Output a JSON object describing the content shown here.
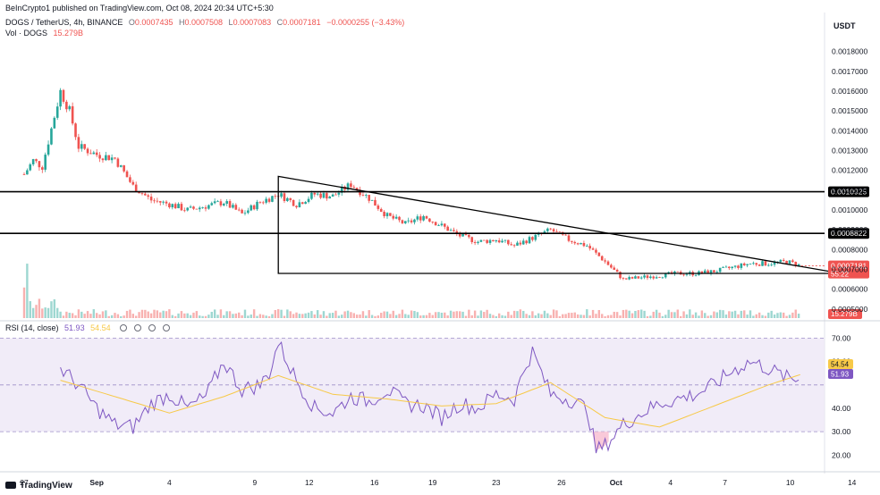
{
  "publisher_line": "BeInCrypto1 published on TradingView.com, Oct 08, 2024 20:34 UTC+5:30",
  "symbol": {
    "title": "DOGS / TetherUS, 4h, BINANCE",
    "o_label": "O",
    "o": "0.0007435",
    "h_label": "H",
    "h": "0.0007508",
    "l_label": "L",
    "l": "0.0007083",
    "c_label": "C",
    "c": "0.0007181",
    "change": "−0.0000255 (−3.43%)"
  },
  "volume": {
    "label": "Vol · DOGS",
    "value": "15.279B"
  },
  "rsi_header": {
    "label": "RSI (14, close)",
    "rsi": "51.93",
    "ma": "54.54"
  },
  "currency_unit": "USDT",
  "branding": "TradingView",
  "colors": {
    "up": "#26a69a",
    "down": "#ef5350",
    "rsi_line": "#7e57c2",
    "rsi_ma": "#f7c948",
    "band": "#ede7f6"
  },
  "chart_data": [
    {
      "type": "candlestick",
      "title": "DOGS / TetherUS, 4h, BINANCE",
      "y_axis_ticks": [
        "0.0018000",
        "0.0017000",
        "0.0016000",
        "0.0015000",
        "0.0014000",
        "0.0013000",
        "0.0012000",
        "0.0011000",
        "0.0010000",
        "0.0009000",
        "0.0008000",
        "0.0007000",
        "0.0006000",
        "0.0005000"
      ],
      "ylim": [
        0.00045,
        0.00188
      ],
      "x_axis_ticks": [
        "27",
        "Sep",
        "4",
        "9",
        "12",
        "16",
        "19",
        "23",
        "26",
        "Oct",
        "4",
        "7",
        "10",
        "14"
      ],
      "price_series_approx": {
        "x_days": [
          0,
          0.5,
          1,
          2,
          2.5,
          3,
          4,
          5,
          6,
          7,
          8,
          9,
          10,
          11,
          12,
          13,
          14,
          15,
          16,
          17,
          18,
          19,
          20,
          21,
          22,
          23,
          24,
          25,
          26,
          27,
          28,
          29,
          30,
          31,
          32,
          33,
          34,
          35,
          36,
          37,
          38,
          39,
          40,
          41,
          42,
          42.8
        ],
        "close": [
          0.00118,
          0.00125,
          0.00122,
          0.0016,
          0.0015,
          0.00132,
          0.00128,
          0.00126,
          0.00112,
          0.00105,
          0.00103,
          0.001,
          0.00102,
          0.00104,
          0.00098,
          0.00104,
          0.00108,
          0.00103,
          0.00108,
          0.00107,
          0.00113,
          0.00106,
          0.00097,
          0.00093,
          0.00097,
          0.00092,
          0.00087,
          0.00084,
          0.00085,
          0.00082,
          0.00086,
          0.0009,
          0.00085,
          0.00082,
          0.00074,
          0.00065,
          0.00066,
          0.00067,
          0.00068,
          0.00068,
          0.00069,
          0.00071,
          0.00073,
          0.00073,
          0.00074,
          0.00072
        ]
      },
      "horizontal_levels": [
        {
          "label": "0.0010925",
          "value": 0.0010925
        },
        {
          "label": "0.0008822",
          "value": 0.0008822
        }
      ],
      "current_price": {
        "label": "0.0007181",
        "value": 0.0007181,
        "countdown": "55:22"
      },
      "triangle_pattern": {
        "start_day": 14,
        "apex_day": 45,
        "upper_start": 0.00117,
        "base": 0.00068
      }
    },
    {
      "type": "bar",
      "title": "Vol · DOGS",
      "current_value_label": "15.279B"
    },
    {
      "type": "line",
      "title": "RSI (14, close)",
      "y_axis_ticks": [
        "70.00",
        "60.00",
        "40.00",
        "30.00",
        "20.00"
      ],
      "ylim": [
        14,
        74
      ],
      "band": [
        30,
        70
      ],
      "midline": 50,
      "series": [
        {
          "name": "RSI",
          "x_days": [
            2,
            3,
            4,
            5,
            6,
            7,
            8,
            9,
            10,
            11,
            12,
            13,
            13.5,
            14,
            15,
            16,
            17,
            18,
            19,
            20,
            21,
            22,
            23,
            24,
            25,
            26,
            27,
            27.6,
            28,
            29,
            30,
            31,
            31.5,
            32,
            33,
            34,
            35,
            36,
            37,
            38,
            39,
            40,
            41,
            42,
            42.8
          ],
          "values": [
            57,
            50,
            40,
            33,
            32,
            42,
            46,
            40,
            45,
            60,
            48,
            50,
            55,
            68,
            52,
            40,
            38,
            45,
            43,
            48,
            42,
            41,
            36,
            42,
            40,
            46,
            44,
            58,
            64,
            46,
            44,
            40,
            22,
            24,
            33,
            38,
            42,
            44,
            46,
            50,
            56,
            60,
            57,
            53,
            51.93
          ],
          "last_label": "51.93"
        },
        {
          "name": "RSI-based MA",
          "x_days": [
            2,
            5,
            8,
            11,
            14,
            17,
            20,
            23,
            26,
            29,
            32,
            35,
            38,
            41,
            42.8
          ],
          "values": [
            52,
            45,
            38,
            45,
            54,
            46,
            44,
            41,
            42,
            51,
            36,
            32,
            41,
            50,
            54.54
          ],
          "last_label": "54.54"
        }
      ]
    }
  ]
}
